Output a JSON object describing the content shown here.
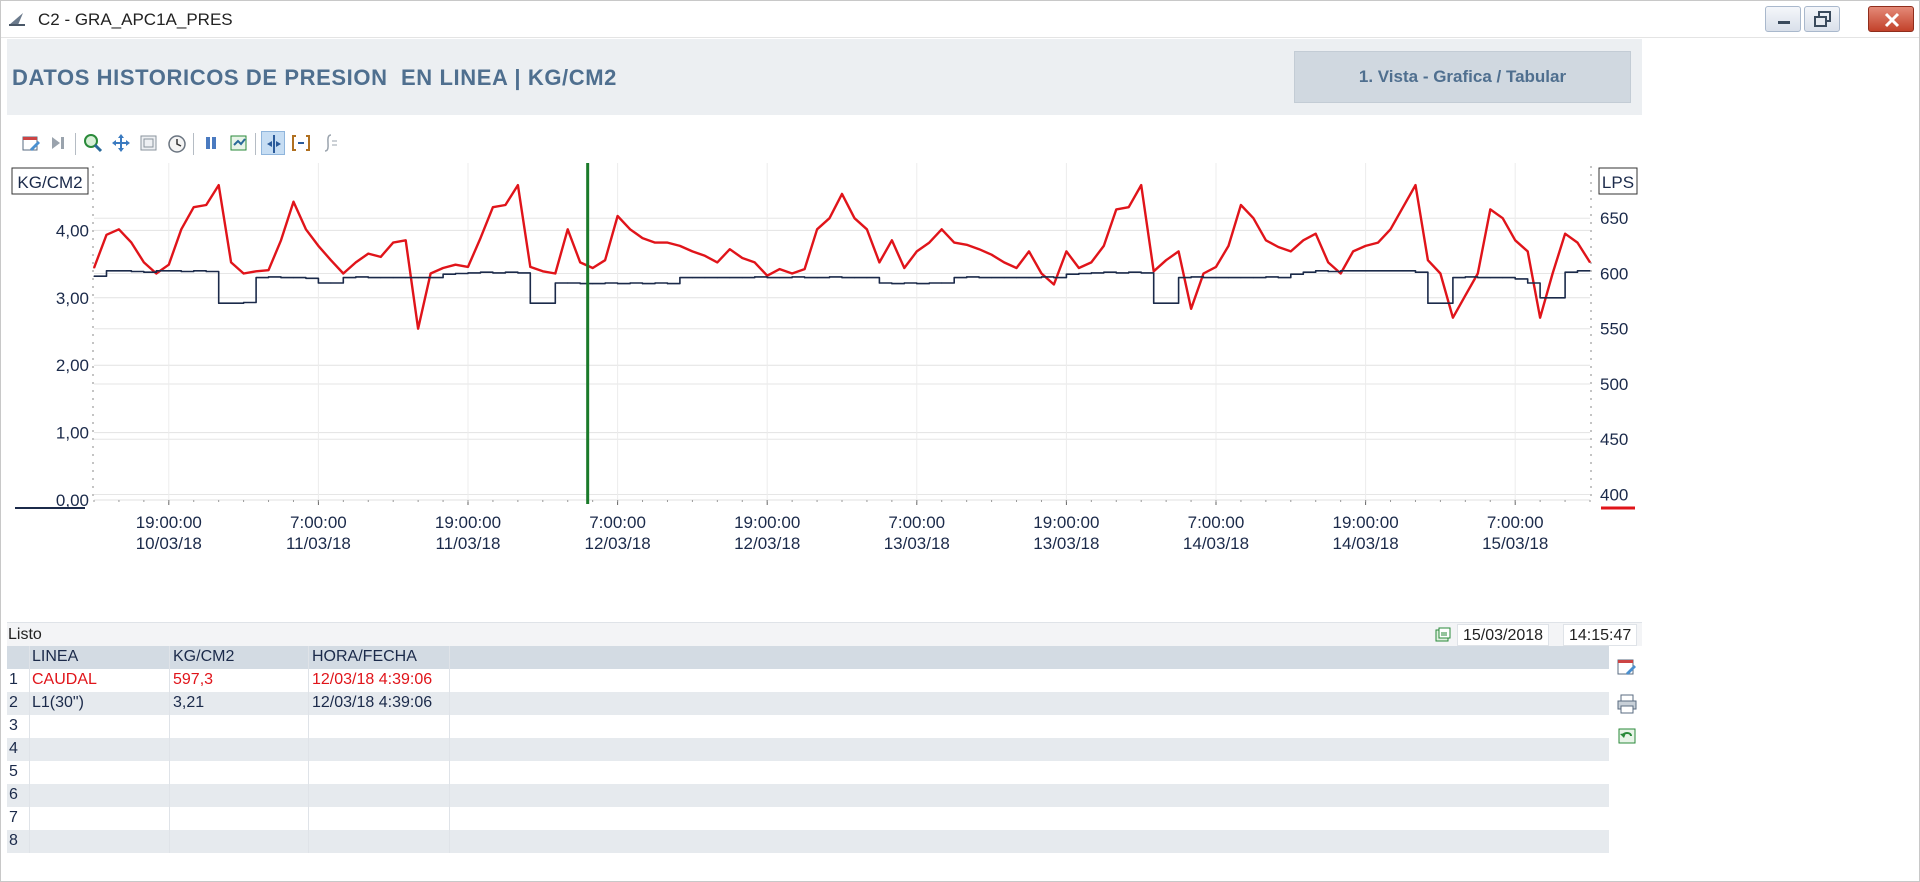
{
  "window": {
    "title": "C2 - GRA_APC1A_PRES"
  },
  "header": {
    "title": "DATOS HISTORICOS DE PRESION  EN LINEA | KG/CM2",
    "view_button": "1. Vista - Grafica / Tabular"
  },
  "toolbar": {
    "icons": [
      "calendar-edit-icon",
      "play-end-icon",
      "zoom-icon",
      "pan-icon",
      "zoom-fit-icon",
      "clock-icon",
      "pause-icon",
      "sync-icon",
      "cursor-icon",
      "bracket-icon",
      "integral-icon"
    ]
  },
  "colors": {
    "caudal": "#e0141a",
    "linea": "#1b2a4a",
    "cursor": "#1a7a2a",
    "header_text": "#4f6f8f",
    "header_bg": "#eceff2"
  },
  "chart_data": {
    "type": "line",
    "left_axis": {
      "label": "KG/CM2",
      "ticks": [
        "0,00",
        "1,00",
        "2,00",
        "3,00",
        "4,00"
      ],
      "range": [
        0,
        5
      ]
    },
    "right_axis": {
      "label": "LPS",
      "ticks": [
        "400",
        "450",
        "500",
        "550",
        "600",
        "650"
      ],
      "range": [
        395,
        700
      ]
    },
    "x_ticks": [
      {
        "time": "19:00:00",
        "date": "10/03/18"
      },
      {
        "time": "7:00:00",
        "date": "11/03/18"
      },
      {
        "time": "19:00:00",
        "date": "11/03/18"
      },
      {
        "time": "7:00:00",
        "date": "12/03/18"
      },
      {
        "time": "19:00:00",
        "date": "12/03/18"
      },
      {
        "time": "7:00:00",
        "date": "13/03/18"
      },
      {
        "time": "19:00:00",
        "date": "13/03/18"
      },
      {
        "time": "7:00:00",
        "date": "14/03/18"
      },
      {
        "time": "19:00:00",
        "date": "14/03/18"
      },
      {
        "time": "7:00:00",
        "date": "15/03/18"
      }
    ],
    "x_range_hours": [
      0,
      120
    ],
    "cursor_hour": 39.6,
    "series": [
      {
        "name": "CAUDAL",
        "axis": "right",
        "x_hours": [
          0,
          1,
          2,
          3,
          4,
          5,
          6,
          7,
          8,
          9,
          10,
          11,
          12,
          13,
          14,
          15,
          16,
          17,
          18,
          19,
          20,
          21,
          22,
          23,
          24,
          25,
          26,
          27,
          28,
          29,
          30,
          31,
          32,
          33,
          34,
          35,
          36,
          37,
          38,
          39,
          40,
          41,
          42,
          43,
          44,
          45,
          46,
          47,
          48,
          49,
          50,
          51,
          52,
          53,
          54,
          55,
          56,
          57,
          58,
          59,
          60,
          61,
          62,
          63,
          64,
          65,
          66,
          67,
          68,
          69,
          70,
          71,
          72,
          73,
          74,
          75,
          76,
          77,
          78,
          79,
          80,
          81,
          82,
          83,
          84,
          85,
          86,
          87,
          88,
          89,
          90,
          91,
          92,
          93,
          94,
          95,
          96,
          97,
          98,
          99,
          100,
          101,
          102,
          103,
          104,
          105,
          106,
          107,
          108,
          109,
          110,
          111,
          112,
          113,
          114,
          115,
          116,
          117,
          118,
          119,
          120
        ],
        "values": [
          605,
          635,
          640,
          628,
          610,
          600,
          608,
          640,
          660,
          662,
          680,
          610,
          600,
          602,
          603,
          630,
          665,
          640,
          625,
          612,
          600,
          610,
          618,
          615,
          628,
          630,
          550,
          600,
          605,
          608,
          606,
          632,
          660,
          662,
          680,
          606,
          602,
          600,
          640,
          610,
          605,
          612,
          652,
          640,
          632,
          628,
          628,
          625,
          620,
          616,
          610,
          622,
          614,
          610,
          598,
          604,
          600,
          604,
          640,
          650,
          672,
          650,
          640,
          610,
          630,
          605,
          620,
          628,
          640,
          628,
          626,
          622,
          617,
          610,
          605,
          620,
          600,
          590,
          620,
          605,
          610,
          625,
          658,
          660,
          680,
          602,
          612,
          620,
          568,
          600,
          606,
          625,
          662,
          650,
          630,
          624,
          620,
          630,
          636,
          610,
          600,
          620,
          625,
          628,
          640,
          660,
          680,
          612,
          600,
          560,
          580,
          600,
          658,
          650,
          630,
          620,
          560,
          600,
          636,
          628,
          610
        ]
      },
      {
        "name": "L1(30\")",
        "axis": "left",
        "x_hours": [
          0,
          1,
          2,
          3,
          4,
          5,
          6,
          7,
          8,
          9,
          10,
          11,
          12,
          13,
          14,
          15,
          16,
          17,
          18,
          19,
          20,
          21,
          22,
          23,
          24,
          25,
          26,
          27,
          28,
          29,
          30,
          31,
          32,
          33,
          34,
          35,
          36,
          37,
          38,
          39,
          40,
          41,
          42,
          43,
          44,
          45,
          46,
          47,
          48,
          49,
          50,
          51,
          52,
          53,
          54,
          55,
          56,
          57,
          58,
          59,
          60,
          61,
          62,
          63,
          64,
          65,
          66,
          67,
          68,
          69,
          70,
          71,
          72,
          73,
          74,
          75,
          76,
          77,
          78,
          79,
          80,
          81,
          82,
          83,
          84,
          85,
          86,
          87,
          88,
          89,
          90,
          91,
          92,
          93,
          94,
          95,
          96,
          97,
          98,
          99,
          100,
          101,
          102,
          103,
          104,
          105,
          106,
          107,
          108,
          109,
          110,
          111,
          112,
          113,
          114,
          115,
          116,
          117,
          118,
          119,
          120
        ],
        "values": [
          3.32,
          3.4,
          3.4,
          3.39,
          3.38,
          3.4,
          3.4,
          3.39,
          3.4,
          3.39,
          2.92,
          2.92,
          2.93,
          3.3,
          3.31,
          3.3,
          3.3,
          3.29,
          3.22,
          3.22,
          3.3,
          3.31,
          3.3,
          3.3,
          3.3,
          3.3,
          3.3,
          3.3,
          3.35,
          3.36,
          3.37,
          3.38,
          3.37,
          3.38,
          3.37,
          2.92,
          2.92,
          3.22,
          3.22,
          3.21,
          3.21,
          3.22,
          3.21,
          3.22,
          3.21,
          3.22,
          3.21,
          3.3,
          3.3,
          3.3,
          3.3,
          3.3,
          3.3,
          3.31,
          3.3,
          3.3,
          3.31,
          3.3,
          3.3,
          3.31,
          3.3,
          3.3,
          3.3,
          3.22,
          3.21,
          3.22,
          3.21,
          3.22,
          3.22,
          3.3,
          3.31,
          3.3,
          3.3,
          3.3,
          3.3,
          3.3,
          3.31,
          3.3,
          3.35,
          3.36,
          3.37,
          3.38,
          3.37,
          3.38,
          3.37,
          2.92,
          2.92,
          3.3,
          3.31,
          3.3,
          3.3,
          3.3,
          3.3,
          3.3,
          3.31,
          3.3,
          3.35,
          3.38,
          3.4,
          3.39,
          3.4,
          3.4,
          3.4,
          3.4,
          3.4,
          3.4,
          3.38,
          2.92,
          2.92,
          3.3,
          3.31,
          3.3,
          3.3,
          3.3,
          3.28,
          3.22,
          3.0,
          3.0,
          3.38,
          3.4,
          3.4
        ]
      }
    ]
  },
  "status": {
    "text": "Listo",
    "date": "15/03/2018",
    "time": "14:15:47"
  },
  "table": {
    "headers": [
      "LINEA",
      "KG/CM2",
      "HORA/FECHA"
    ],
    "rows": [
      {
        "num": "1",
        "linea": "CAUDAL",
        "valor": "597,3",
        "fecha": "12/03/18 4:39:06",
        "color": "#e0141a"
      },
      {
        "num": "2",
        "linea": "L1(30\")",
        "valor": "3,21",
        "fecha": "12/03/18 4:39:06",
        "color": "#1b2a4a"
      },
      {
        "num": "3",
        "linea": "",
        "valor": "",
        "fecha": "",
        "color": "#1b2a4a"
      },
      {
        "num": "4",
        "linea": "",
        "valor": "",
        "fecha": "",
        "color": "#1b2a4a"
      },
      {
        "num": "5",
        "linea": "",
        "valor": "",
        "fecha": "",
        "color": "#1b2a4a"
      },
      {
        "num": "6",
        "linea": "",
        "valor": "",
        "fecha": "",
        "color": "#1b2a4a"
      },
      {
        "num": "7",
        "linea": "",
        "valor": "",
        "fecha": "",
        "color": "#1b2a4a"
      },
      {
        "num": "8",
        "linea": "",
        "valor": "",
        "fecha": "",
        "color": "#1b2a4a"
      }
    ]
  },
  "side_buttons": [
    "calendar-edit-icon",
    "print-icon",
    "refresh-icon"
  ]
}
